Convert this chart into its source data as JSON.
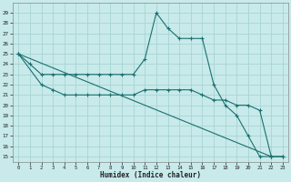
{
  "xlabel": "Humidex (Indice chaleur)",
  "background_color": "#c8eaea",
  "grid_color": "#a8d4d4",
  "line_color": "#1a7070",
  "xlim": [
    -0.5,
    23.5
  ],
  "ylim": [
    14.5,
    30.0
  ],
  "yticks": [
    15,
    16,
    17,
    18,
    19,
    20,
    21,
    22,
    23,
    24,
    25,
    26,
    27,
    28,
    29
  ],
  "xticks": [
    0,
    1,
    2,
    3,
    4,
    5,
    6,
    7,
    8,
    9,
    10,
    11,
    12,
    13,
    14,
    15,
    16,
    17,
    18,
    19,
    20,
    21,
    22,
    23
  ],
  "lines": [
    {
      "x": [
        0,
        1,
        2,
        3,
        4,
        5,
        6,
        7,
        8,
        9,
        10,
        11,
        12,
        13,
        14,
        15,
        16,
        17,
        18,
        19,
        20,
        21,
        22
      ],
      "y": [
        25,
        24,
        23,
        23,
        23,
        23,
        23,
        23,
        23,
        23,
        23,
        24.5,
        29,
        27.5,
        26.5,
        26.5,
        26.5,
        22,
        20,
        19,
        17,
        15,
        15
      ]
    },
    {
      "x": [
        0,
        2,
        3,
        4,
        5,
        6,
        7,
        8,
        9,
        10,
        11,
        12,
        13,
        14,
        15,
        16,
        17,
        18,
        19,
        20,
        21,
        22,
        23
      ],
      "y": [
        25,
        22,
        21.5,
        21,
        21,
        21,
        21,
        21,
        21,
        21,
        21.5,
        21.5,
        21.5,
        21.5,
        21.5,
        21,
        20.5,
        20.5,
        20,
        20,
        19.5,
        15,
        15
      ]
    },
    {
      "x": [
        0,
        22,
        23
      ],
      "y": [
        25,
        15,
        15
      ]
    }
  ]
}
